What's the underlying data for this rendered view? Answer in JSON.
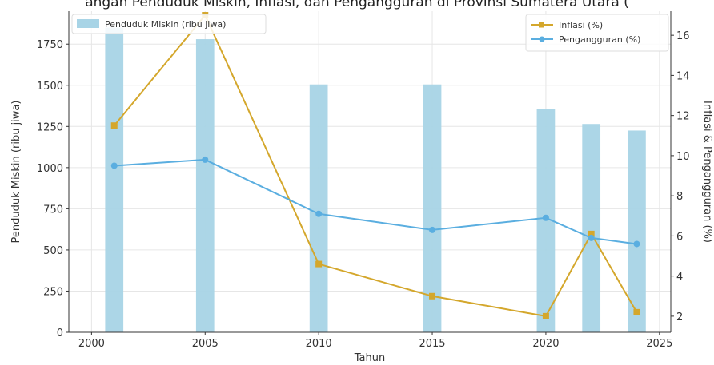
{
  "chart_data": {
    "type": "bar",
    "title": "angan Penduduk Miskin, Inflasi, dan Pengangguran di Provinsi Sumatera Utara (",
    "xlabel": "Tahun",
    "ylabel_left": "Penduduk Miskin (ribu jiwa)",
    "ylabel_right": "Inflasi & Pengangguran (%)",
    "xlim": [
      1999,
      2025.5
    ],
    "ylim_left": [
      0,
      1950
    ],
    "ylim_right": [
      1.2,
      17.2
    ],
    "x_ticks": [
      2000,
      2005,
      2010,
      2015,
      2020,
      2025
    ],
    "y_ticks_left": [
      0,
      250,
      500,
      750,
      1000,
      1250,
      1500,
      1750
    ],
    "y_ticks_right": [
      2,
      4,
      6,
      8,
      10,
      12,
      14,
      16
    ],
    "grid": true,
    "series": [
      {
        "name": "Penduduk Miskin (ribu jiwa)",
        "type": "bar",
        "axis": "left",
        "color": "#a8d4e6",
        "x": [
          2001,
          2005,
          2010,
          2015,
          2020,
          2022,
          2024
        ],
        "values": [
          1850,
          1780,
          1505,
          1505,
          1355,
          1265,
          1225
        ]
      },
      {
        "name": "Inflasi (%)",
        "type": "line",
        "axis": "right",
        "color": "#d4a72c",
        "marker": "square",
        "x": [
          2001,
          2005,
          2010,
          2015,
          2020,
          2022,
          2024
        ],
        "values": [
          11.5,
          17.0,
          4.6,
          3.0,
          2.0,
          6.1,
          2.2
        ]
      },
      {
        "name": "Pengangguran (%)",
        "type": "line",
        "axis": "right",
        "color": "#5aaee0",
        "marker": "circle",
        "x": [
          2001,
          2005,
          2010,
          2015,
          2020,
          2022,
          2024
        ],
        "values": [
          9.5,
          9.8,
          7.1,
          6.3,
          6.9,
          5.9,
          5.6
        ]
      }
    ],
    "legend_left_placement": "upper-left",
    "legend_right_placement": "upper-right"
  }
}
